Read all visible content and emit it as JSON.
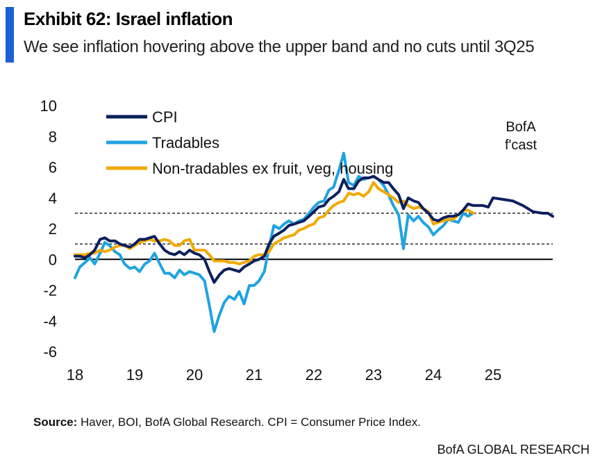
{
  "header": {
    "title": "Exhibit 62: Israel inflation",
    "subtitle": "We see inflation hovering above the upper band and no cuts until 3Q25"
  },
  "source": {
    "label": "Source:",
    "text": "Haver, BOI, BofA Global Research. CPI = Consumer Price Index."
  },
  "footer": {
    "brand": "BofA GLOBAL RESEARCH"
  },
  "colors": {
    "accent": "#1c5fd6",
    "cpi": "#0b1f5c",
    "tradables": "#1fa3e0",
    "nontradables": "#f2a900",
    "band": "#000000"
  },
  "chart_data": {
    "type": "line",
    "title": "",
    "xlabel": "",
    "ylabel": "",
    "xlim": [
      2018,
      2026
    ],
    "ylim": [
      -6,
      10
    ],
    "y_ticks": [
      10,
      8,
      6,
      4,
      2,
      0,
      -2,
      -4,
      -6
    ],
    "x_ticks": [
      {
        "value": 2018,
        "label": "18"
      },
      {
        "value": 2019,
        "label": "19"
      },
      {
        "value": 2020,
        "label": "20"
      },
      {
        "value": 2021,
        "label": "21"
      },
      {
        "value": 2022,
        "label": "22"
      },
      {
        "value": 2023,
        "label": "23"
      },
      {
        "value": 2024,
        "label": "24"
      },
      {
        "value": 2025,
        "label": "25"
      }
    ],
    "reference_lines": [
      {
        "name": "upper-band",
        "y": 3,
        "style": "dashed"
      },
      {
        "name": "lower-band",
        "y": 1,
        "style": "dashed"
      },
      {
        "name": "zero-line",
        "y": 0,
        "style": "solid"
      }
    ],
    "annotation": {
      "line1": "BofA",
      "line2": "f'cast"
    },
    "legend": {
      "position": "top-left"
    },
    "series": [
      {
        "key": "cpi",
        "name": "CPI",
        "color": "#0b1f5c",
        "points": [
          [
            2018.0,
            0.2
          ],
          [
            2018.08,
            0.2
          ],
          [
            2018.17,
            0.1
          ],
          [
            2018.25,
            0.3
          ],
          [
            2018.33,
            0.6
          ],
          [
            2018.42,
            1.3
          ],
          [
            2018.5,
            1.4
          ],
          [
            2018.58,
            1.2
          ],
          [
            2018.67,
            1.2
          ],
          [
            2018.75,
            1.0
          ],
          [
            2018.83,
            0.9
          ],
          [
            2018.92,
            0.8
          ],
          [
            2019.0,
            1.0
          ],
          [
            2019.08,
            1.3
          ],
          [
            2019.17,
            1.3
          ],
          [
            2019.25,
            1.4
          ],
          [
            2019.33,
            1.5
          ],
          [
            2019.42,
            1.0
          ],
          [
            2019.5,
            0.6
          ],
          [
            2019.58,
            0.4
          ],
          [
            2019.67,
            0.3
          ],
          [
            2019.75,
            0.5
          ],
          [
            2019.83,
            0.3
          ],
          [
            2019.92,
            0.6
          ],
          [
            2020.0,
            0.4
          ],
          [
            2020.08,
            0.3
          ],
          [
            2020.17,
            0.0
          ],
          [
            2020.25,
            -0.8
          ],
          [
            2020.33,
            -1.5
          ],
          [
            2020.42,
            -1.0
          ],
          [
            2020.5,
            -0.7
          ],
          [
            2020.58,
            -0.6
          ],
          [
            2020.67,
            -0.7
          ],
          [
            2020.75,
            -0.8
          ],
          [
            2020.83,
            -0.5
          ],
          [
            2020.92,
            -0.3
          ],
          [
            2021.0,
            -0.1
          ],
          [
            2021.08,
            0.0
          ],
          [
            2021.17,
            0.2
          ],
          [
            2021.25,
            1.0
          ],
          [
            2021.33,
            1.5
          ],
          [
            2021.42,
            1.7
          ],
          [
            2021.5,
            1.9
          ],
          [
            2021.58,
            2.2
          ],
          [
            2021.67,
            2.3
          ],
          [
            2021.75,
            2.4
          ],
          [
            2021.83,
            2.5
          ],
          [
            2021.92,
            2.8
          ],
          [
            2022.0,
            3.1
          ],
          [
            2022.08,
            3.4
          ],
          [
            2022.17,
            3.5
          ],
          [
            2022.25,
            3.9
          ],
          [
            2022.33,
            4.1
          ],
          [
            2022.42,
            4.4
          ],
          [
            2022.5,
            5.2
          ],
          [
            2022.58,
            4.6
          ],
          [
            2022.67,
            4.6
          ],
          [
            2022.75,
            5.1
          ],
          [
            2022.83,
            5.3
          ],
          [
            2022.92,
            5.3
          ],
          [
            2023.0,
            5.4
          ],
          [
            2023.08,
            5.2
          ],
          [
            2023.17,
            5.0
          ],
          [
            2023.25,
            5.0
          ],
          [
            2023.33,
            4.6
          ],
          [
            2023.42,
            4.2
          ],
          [
            2023.5,
            3.3
          ],
          [
            2023.58,
            4.0
          ],
          [
            2023.67,
            3.8
          ],
          [
            2023.75,
            3.7
          ],
          [
            2023.83,
            3.3
          ],
          [
            2023.92,
            3.0
          ],
          [
            2024.0,
            2.6
          ],
          [
            2024.08,
            2.5
          ],
          [
            2024.17,
            2.7
          ],
          [
            2024.25,
            2.8
          ],
          [
            2024.33,
            2.8
          ],
          [
            2024.42,
            2.9
          ],
          [
            2024.5,
            3.2
          ],
          [
            2024.58,
            3.6
          ],
          [
            2024.67,
            3.5
          ],
          [
            2024.75,
            3.5
          ],
          [
            2024.83,
            3.5
          ],
          [
            2024.92,
            3.4
          ],
          [
            2025.0,
            4.0
          ],
          [
            2025.17,
            3.9
          ],
          [
            2025.33,
            3.8
          ],
          [
            2025.5,
            3.5
          ],
          [
            2025.67,
            3.1
          ],
          [
            2025.83,
            3.0
          ],
          [
            2025.92,
            3.0
          ],
          [
            2026.0,
            2.8
          ]
        ]
      },
      {
        "key": "tradables",
        "name": "Tradables",
        "color": "#1fa3e0",
        "points": [
          [
            2018.0,
            -1.2
          ],
          [
            2018.08,
            -0.5
          ],
          [
            2018.17,
            -0.2
          ],
          [
            2018.25,
            0.1
          ],
          [
            2018.33,
            -0.3
          ],
          [
            2018.42,
            0.4
          ],
          [
            2018.5,
            1.1
          ],
          [
            2018.58,
            0.9
          ],
          [
            2018.67,
            0.5
          ],
          [
            2018.75,
            0.3
          ],
          [
            2018.83,
            -0.3
          ],
          [
            2018.92,
            -0.6
          ],
          [
            2019.0,
            -0.5
          ],
          [
            2019.08,
            -0.8
          ],
          [
            2019.17,
            -0.3
          ],
          [
            2019.25,
            -0.1
          ],
          [
            2019.33,
            0.4
          ],
          [
            2019.42,
            -0.3
          ],
          [
            2019.5,
            -0.9
          ],
          [
            2019.58,
            -0.9
          ],
          [
            2019.67,
            -1.2
          ],
          [
            2019.75,
            -0.7
          ],
          [
            2019.83,
            -1.0
          ],
          [
            2019.92,
            -0.8
          ],
          [
            2020.0,
            -0.9
          ],
          [
            2020.08,
            -1.0
          ],
          [
            2020.17,
            -1.4
          ],
          [
            2020.25,
            -3.0
          ],
          [
            2020.33,
            -4.7
          ],
          [
            2020.42,
            -3.6
          ],
          [
            2020.5,
            -2.8
          ],
          [
            2020.58,
            -2.4
          ],
          [
            2020.67,
            -2.6
          ],
          [
            2020.75,
            -2.1
          ],
          [
            2020.83,
            -2.9
          ],
          [
            2020.92,
            -1.7
          ],
          [
            2021.0,
            -1.7
          ],
          [
            2021.08,
            -1.4
          ],
          [
            2021.17,
            -0.8
          ],
          [
            2021.25,
            0.8
          ],
          [
            2021.33,
            2.2
          ],
          [
            2021.42,
            2.0
          ],
          [
            2021.5,
            2.3
          ],
          [
            2021.58,
            2.5
          ],
          [
            2021.67,
            2.3
          ],
          [
            2021.75,
            2.5
          ],
          [
            2021.83,
            2.6
          ],
          [
            2021.92,
            3.0
          ],
          [
            2022.0,
            3.4
          ],
          [
            2022.08,
            3.7
          ],
          [
            2022.17,
            3.8
          ],
          [
            2022.25,
            4.5
          ],
          [
            2022.33,
            4.7
          ],
          [
            2022.42,
            5.8
          ],
          [
            2022.5,
            6.9
          ],
          [
            2022.58,
            5.0
          ],
          [
            2022.67,
            4.8
          ],
          [
            2022.75,
            5.4
          ],
          [
            2022.83,
            5.2
          ],
          [
            2022.92,
            5.3
          ],
          [
            2023.0,
            5.4
          ],
          [
            2023.08,
            5.2
          ],
          [
            2023.17,
            4.8
          ],
          [
            2023.25,
            4.2
          ],
          [
            2023.33,
            3.5
          ],
          [
            2023.42,
            2.9
          ],
          [
            2023.5,
            0.7
          ],
          [
            2023.58,
            2.9
          ],
          [
            2023.67,
            2.5
          ],
          [
            2023.75,
            2.8
          ],
          [
            2023.83,
            2.4
          ],
          [
            2023.92,
            2.1
          ],
          [
            2024.0,
            1.6
          ],
          [
            2024.08,
            1.9
          ],
          [
            2024.17,
            2.2
          ],
          [
            2024.25,
            2.6
          ],
          [
            2024.33,
            2.5
          ],
          [
            2024.42,
            2.4
          ],
          [
            2024.5,
            3.0
          ],
          [
            2024.58,
            2.8
          ],
          [
            2024.67,
            3.0
          ]
        ]
      },
      {
        "key": "nontradables",
        "name": "Non-tradables ex fruit, veg, housing",
        "color": "#f2a900",
        "points": [
          [
            2018.0,
            0.3
          ],
          [
            2018.08,
            0.3
          ],
          [
            2018.17,
            0.3
          ],
          [
            2018.25,
            0.4
          ],
          [
            2018.33,
            0.4
          ],
          [
            2018.42,
            0.6
          ],
          [
            2018.5,
            0.5
          ],
          [
            2018.58,
            0.6
          ],
          [
            2018.67,
            0.8
          ],
          [
            2018.75,
            0.9
          ],
          [
            2018.83,
            0.9
          ],
          [
            2018.92,
            0.7
          ],
          [
            2019.0,
            0.9
          ],
          [
            2019.08,
            1.1
          ],
          [
            2019.17,
            1.2
          ],
          [
            2019.25,
            1.3
          ],
          [
            2019.33,
            1.2
          ],
          [
            2019.42,
            1.2
          ],
          [
            2019.5,
            1.3
          ],
          [
            2019.58,
            1.2
          ],
          [
            2019.67,
            0.9
          ],
          [
            2019.75,
            0.9
          ],
          [
            2019.83,
            1.2
          ],
          [
            2019.92,
            1.3
          ],
          [
            2020.0,
            0.6
          ],
          [
            2020.08,
            0.6
          ],
          [
            2020.17,
            0.6
          ],
          [
            2020.25,
            0.3
          ],
          [
            2020.33,
            -0.1
          ],
          [
            2020.42,
            -0.1
          ],
          [
            2020.5,
            -0.1
          ],
          [
            2020.58,
            -0.2
          ],
          [
            2020.67,
            -0.2
          ],
          [
            2020.75,
            -0.3
          ],
          [
            2020.83,
            -0.2
          ],
          [
            2020.92,
            -0.1
          ],
          [
            2021.0,
            0.2
          ],
          [
            2021.08,
            0.3
          ],
          [
            2021.17,
            0.3
          ],
          [
            2021.25,
            0.5
          ],
          [
            2021.33,
            1.0
          ],
          [
            2021.42,
            1.2
          ],
          [
            2021.5,
            1.4
          ],
          [
            2021.58,
            1.5
          ],
          [
            2021.67,
            1.6
          ],
          [
            2021.75,
            1.9
          ],
          [
            2021.83,
            2.0
          ],
          [
            2021.92,
            2.2
          ],
          [
            2022.0,
            2.3
          ],
          [
            2022.08,
            2.7
          ],
          [
            2022.17,
            2.8
          ],
          [
            2022.25,
            3.2
          ],
          [
            2022.33,
            3.5
          ],
          [
            2022.42,
            3.7
          ],
          [
            2022.5,
            3.8
          ],
          [
            2022.58,
            4.3
          ],
          [
            2022.67,
            4.2
          ],
          [
            2022.75,
            4.3
          ],
          [
            2022.83,
            4.1
          ],
          [
            2022.92,
            4.4
          ],
          [
            2023.0,
            5.0
          ],
          [
            2023.08,
            4.6
          ],
          [
            2023.17,
            4.4
          ],
          [
            2023.25,
            4.2
          ],
          [
            2023.33,
            4.0
          ],
          [
            2023.42,
            3.7
          ],
          [
            2023.5,
            3.8
          ],
          [
            2023.58,
            3.5
          ],
          [
            2023.67,
            3.3
          ],
          [
            2023.75,
            3.4
          ],
          [
            2023.83,
            3.3
          ],
          [
            2023.92,
            3.1
          ],
          [
            2024.0,
            2.3
          ],
          [
            2024.08,
            2.4
          ],
          [
            2024.17,
            2.5
          ],
          [
            2024.25,
            2.6
          ],
          [
            2024.33,
            2.6
          ],
          [
            2024.42,
            2.9
          ],
          [
            2024.5,
            3.2
          ],
          [
            2024.58,
            3.2
          ],
          [
            2024.67,
            3.0
          ]
        ]
      }
    ]
  }
}
